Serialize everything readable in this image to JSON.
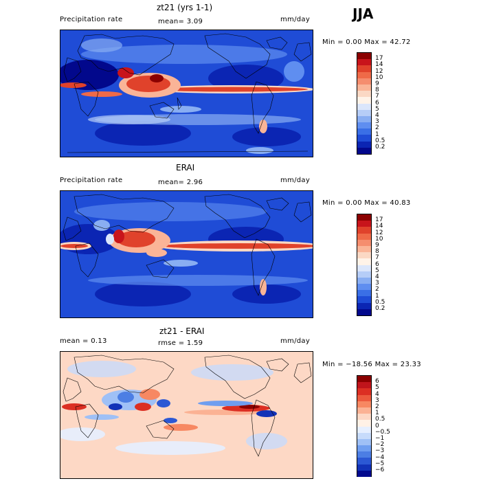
{
  "season": "JJA",
  "panels": [
    {
      "title": "zt21 (yrs 1-1)",
      "left": "Precipitation rate",
      "middle": "mean=   3.09",
      "units": "mm/day",
      "minmax": "Min =   0.00 Max =  42.72",
      "legend": [
        "17",
        "14",
        "12",
        "10",
        "9",
        "8",
        "7",
        "6",
        "5",
        "4",
        "3",
        "2",
        "1",
        "0.5",
        "0.2"
      ],
      "colors": [
        "#8b0000",
        "#c8141b",
        "#e0422b",
        "#ef6a48",
        "#f58d6e",
        "#fab497",
        "#fbd8c4",
        "#fff3e8",
        "#dbe6fb",
        "#b6cdf7",
        "#89aef2",
        "#5f8ef0",
        "#3a6fe6",
        "#1f4cd6",
        "#0b25b3",
        "#02088c"
      ]
    },
    {
      "title": "ERAI",
      "left": "Precipitation rate",
      "middle": "mean=   2.96",
      "units": "mm/day",
      "minmax": "Min =   0.00 Max =  40.83",
      "legend": [
        "17",
        "14",
        "12",
        "10",
        "9",
        "8",
        "7",
        "6",
        "5",
        "4",
        "3",
        "2",
        "1",
        "0.5",
        "0.2"
      ],
      "colors": [
        "#8b0000",
        "#c8141b",
        "#e0422b",
        "#ef6a48",
        "#f58d6e",
        "#fab497",
        "#fbd8c4",
        "#fff3e8",
        "#dbe6fb",
        "#b6cdf7",
        "#89aef2",
        "#5f8ef0",
        "#3a6fe6",
        "#1f4cd6",
        "#0b25b3",
        "#02088c"
      ]
    },
    {
      "title": "zt21 - ERAI",
      "left": "mean =   0.13",
      "middle": "rmse =   1.59",
      "units": "mm/day",
      "minmax": "Min = −18.56 Max =  23.33",
      "legend": [
        "6",
        "5",
        "4",
        "3",
        "2",
        "1",
        "0.5",
        "0",
        "−0.5",
        "−1",
        "−2",
        "−3",
        "−4",
        "−5",
        "−6"
      ],
      "colors": [
        "#8b0000",
        "#c0141b",
        "#dc2f23",
        "#ec5a3e",
        "#f78862",
        "#fbb294",
        "#fdd8c5",
        "#fff1e6",
        "#e6efff",
        "#c7dbfb",
        "#9fc0f6",
        "#6f9ef0",
        "#4c7ee4",
        "#2c58d4",
        "#1232b7",
        "#020a8e"
      ]
    }
  ]
}
